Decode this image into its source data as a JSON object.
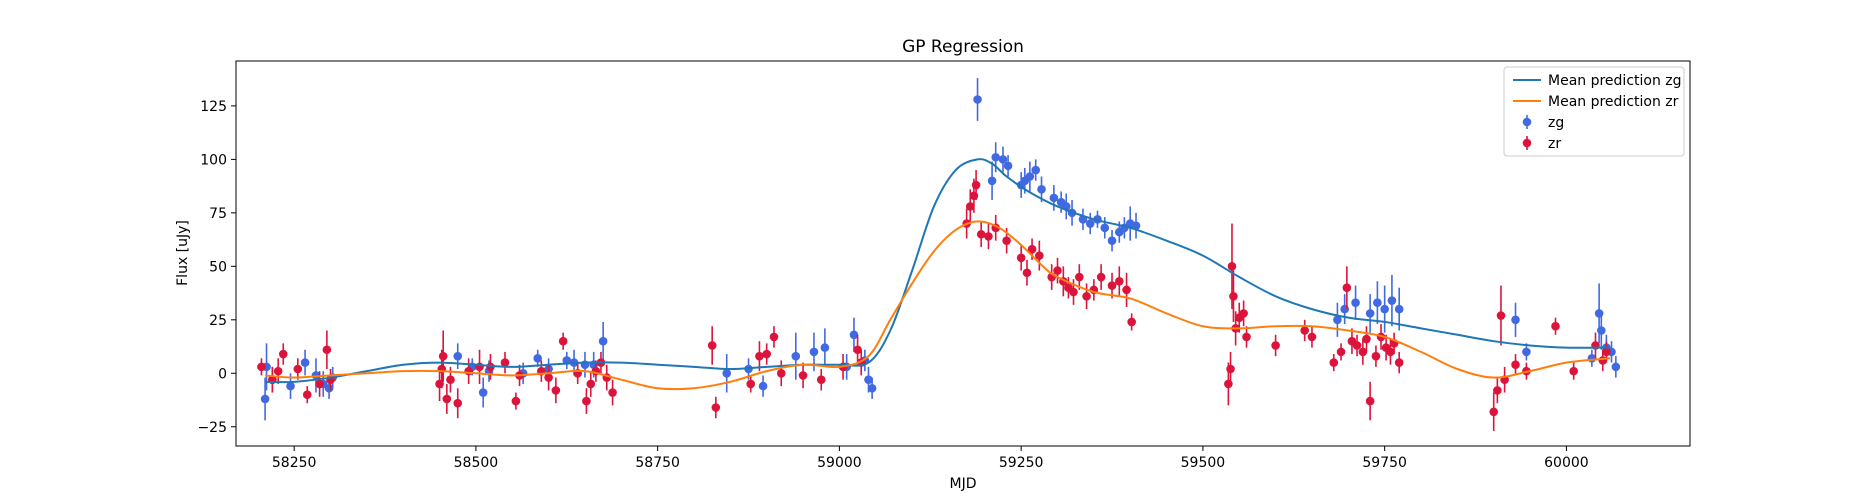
{
  "chart_data": {
    "type": "scatter",
    "title": "GP Regression",
    "xlabel": "MJD",
    "ylabel": "Flux [uJy]",
    "xlim": [
      58170,
      60170
    ],
    "ylim": [
      -34,
      146
    ],
    "xticks": [
      58250,
      58500,
      58750,
      59000,
      59250,
      59500,
      59750,
      60000
    ],
    "yticks": [
      -25,
      0,
      25,
      50,
      75,
      100,
      125
    ],
    "grid": false,
    "legend_position": "top-right",
    "legend": [
      {
        "label": "Mean prediction zg",
        "kind": "line",
        "color": "#1f77b4"
      },
      {
        "label": "Mean prediction zr",
        "kind": "line",
        "color": "#ff7f0e"
      },
      {
        "label": "zg",
        "kind": "errorbar",
        "color": "#4169e1"
      },
      {
        "label": "zr",
        "kind": "errorbar",
        "color": "#dc143c"
      }
    ],
    "lines": [
      {
        "name": "Mean prediction zg",
        "color": "#1f77b4",
        "x": [
          58210,
          58250,
          58300,
          58350,
          58400,
          58450,
          58500,
          58550,
          58600,
          58650,
          58700,
          58750,
          58800,
          58850,
          58900,
          58950,
          59000,
          59040,
          59070,
          59100,
          59130,
          59160,
          59190,
          59210,
          59230,
          59260,
          59300,
          59350,
          59400,
          59450,
          59500,
          59550,
          59600,
          59650,
          59700,
          59750,
          59800,
          59850,
          59900,
          59950,
          60000,
          60060
        ],
        "y": [
          -4,
          -4,
          -2,
          1,
          4,
          5,
          4,
          3,
          4,
          5,
          5,
          4,
          3,
          2,
          3,
          4,
          4,
          5,
          20,
          48,
          78,
          95,
          100,
          98,
          92,
          85,
          78,
          72,
          68,
          62,
          55,
          45,
          36,
          30,
          26,
          24,
          21,
          18,
          15,
          13,
          12,
          12
        ]
      },
      {
        "name": "Mean prediction zr",
        "color": "#ff7f0e",
        "x": [
          58210,
          58250,
          58300,
          58350,
          58400,
          58450,
          58500,
          58550,
          58600,
          58650,
          58700,
          58750,
          58800,
          58850,
          58900,
          58950,
          59000,
          59040,
          59070,
          59100,
          59130,
          59160,
          59190,
          59220,
          59250,
          59280,
          59300,
          59350,
          59400,
          59450,
          59500,
          59550,
          59600,
          59650,
          59700,
          59750,
          59800,
          59850,
          59900,
          59950,
          60000,
          60060
        ],
        "y": [
          -1,
          -2,
          -1,
          0,
          1,
          1,
          0,
          -1,
          0,
          1,
          -3,
          -7,
          -7,
          -4,
          1,
          4,
          3,
          8,
          25,
          42,
          57,
          67,
          71,
          68,
          60,
          50,
          45,
          38,
          35,
          28,
          22,
          21,
          22,
          22,
          20,
          17,
          10,
          2,
          -2,
          1,
          5,
          7
        ]
      }
    ],
    "series": [
      {
        "name": "zg",
        "color": "#4169e1",
        "points": [
          [
            58210,
            -12,
            10
          ],
          [
            58212,
            3,
            11
          ],
          [
            58220,
            -3,
            6
          ],
          [
            58245,
            -6,
            6
          ],
          [
            58265,
            5,
            6
          ],
          [
            58280,
            -1,
            8
          ],
          [
            58290,
            -5,
            6
          ],
          [
            58298,
            -7,
            5
          ],
          [
            58303,
            -2,
            5
          ],
          [
            58475,
            8,
            6
          ],
          [
            58495,
            3,
            4
          ],
          [
            58510,
            -9,
            7
          ],
          [
            58518,
            1,
            5
          ],
          [
            58565,
            0,
            5
          ],
          [
            58585,
            7,
            4
          ],
          [
            58600,
            2,
            5
          ],
          [
            58625,
            6,
            4
          ],
          [
            58635,
            5,
            6
          ],
          [
            58650,
            4,
            6
          ],
          [
            58662,
            4,
            6
          ],
          [
            58675,
            15,
            9
          ],
          [
            58845,
            0,
            9
          ],
          [
            58875,
            2,
            5
          ],
          [
            58895,
            -6,
            5
          ],
          [
            58940,
            8,
            11
          ],
          [
            58965,
            10,
            9
          ],
          [
            58980,
            12,
            9
          ],
          [
            59010,
            3,
            6
          ],
          [
            59020,
            18,
            8
          ],
          [
            59035,
            6,
            5
          ],
          [
            59040,
            -3,
            6
          ],
          [
            59045,
            -7,
            5
          ],
          [
            59190,
            128,
            10
          ],
          [
            59210,
            90,
            9
          ],
          [
            59215,
            101,
            7
          ],
          [
            59225,
            100,
            6
          ],
          [
            59232,
            97,
            5
          ],
          [
            59250,
            88,
            6
          ],
          [
            59255,
            90,
            6
          ],
          [
            59262,
            92,
            7
          ],
          [
            59270,
            95,
            5
          ],
          [
            59278,
            86,
            6
          ],
          [
            59295,
            82,
            6
          ],
          [
            59305,
            80,
            5
          ],
          [
            59312,
            78,
            6
          ],
          [
            59320,
            75,
            6
          ],
          [
            59335,
            72,
            5
          ],
          [
            59345,
            70,
            5
          ],
          [
            59355,
            72,
            4
          ],
          [
            59365,
            68,
            5
          ],
          [
            59375,
            62,
            5
          ],
          [
            59385,
            66,
            5
          ],
          [
            59392,
            68,
            5
          ],
          [
            59400,
            70,
            8
          ],
          [
            59408,
            69,
            6
          ],
          [
            59685,
            25,
            8
          ],
          [
            59695,
            30,
            7
          ],
          [
            59710,
            33,
            8
          ],
          [
            59730,
            28,
            9
          ],
          [
            59740,
            33,
            10
          ],
          [
            59750,
            30,
            11
          ],
          [
            59760,
            34,
            12
          ],
          [
            59770,
            30,
            10
          ],
          [
            59930,
            25,
            8
          ],
          [
            59945,
            10,
            4
          ],
          [
            60035,
            7,
            4
          ],
          [
            60045,
            28,
            14
          ],
          [
            60048,
            20,
            9
          ],
          [
            60055,
            12,
            6
          ],
          [
            60062,
            10,
            5
          ],
          [
            60068,
            3,
            5
          ]
        ]
      },
      {
        "name": "zr",
        "color": "#dc143c",
        "points": [
          [
            58205,
            3,
            4
          ],
          [
            58220,
            -3,
            6
          ],
          [
            58228,
            1,
            6
          ],
          [
            58235,
            9,
            5
          ],
          [
            58255,
            2,
            5
          ],
          [
            58268,
            -10,
            4
          ],
          [
            58285,
            -5,
            6
          ],
          [
            58295,
            11,
            9
          ],
          [
            58300,
            -3,
            5
          ],
          [
            58450,
            -5,
            8
          ],
          [
            58453,
            2,
            9
          ],
          [
            58455,
            8,
            12
          ],
          [
            58460,
            -12,
            7
          ],
          [
            58465,
            -3,
            6
          ],
          [
            58475,
            -14,
            7
          ],
          [
            58490,
            1,
            6
          ],
          [
            58505,
            3,
            8
          ],
          [
            58520,
            3,
            6
          ],
          [
            58540,
            5,
            5
          ],
          [
            58555,
            -13,
            4
          ],
          [
            58560,
            -1,
            5
          ],
          [
            58590,
            1,
            5
          ],
          [
            58600,
            -2,
            6
          ],
          [
            58610,
            -8,
            6
          ],
          [
            58620,
            15,
            4
          ],
          [
            58640,
            0,
            5
          ],
          [
            58652,
            -13,
            6
          ],
          [
            58658,
            -5,
            6
          ],
          [
            58665,
            1,
            5
          ],
          [
            58672,
            5,
            5
          ],
          [
            58680,
            -2,
            6
          ],
          [
            58688,
            -9,
            6
          ],
          [
            58825,
            13,
            9
          ],
          [
            58830,
            -16,
            5
          ],
          [
            58878,
            -5,
            4
          ],
          [
            58890,
            8,
            7
          ],
          [
            58900,
            9,
            5
          ],
          [
            58910,
            17,
            5
          ],
          [
            58920,
            0,
            6
          ],
          [
            58950,
            -1,
            6
          ],
          [
            58975,
            -3,
            5
          ],
          [
            59005,
            3,
            6
          ],
          [
            59025,
            11,
            7
          ],
          [
            59030,
            5,
            6
          ],
          [
            59175,
            70,
            7
          ],
          [
            59180,
            78,
            8
          ],
          [
            59185,
            83,
            8
          ],
          [
            59188,
            88,
            7
          ],
          [
            59195,
            65,
            6
          ],
          [
            59205,
            64,
            6
          ],
          [
            59215,
            68,
            6
          ],
          [
            59230,
            62,
            6
          ],
          [
            59250,
            54,
            6
          ],
          [
            59258,
            47,
            6
          ],
          [
            59265,
            58,
            5
          ],
          [
            59275,
            55,
            7
          ],
          [
            59292,
            45,
            6
          ],
          [
            59300,
            48,
            6
          ],
          [
            59308,
            43,
            7
          ],
          [
            59315,
            40,
            5
          ],
          [
            59322,
            38,
            6
          ],
          [
            59330,
            45,
            6
          ],
          [
            59340,
            36,
            6
          ],
          [
            59350,
            39,
            5
          ],
          [
            59360,
            45,
            6
          ],
          [
            59375,
            41,
            6
          ],
          [
            59385,
            43,
            7
          ],
          [
            59395,
            39,
            8
          ],
          [
            59402,
            24,
            4
          ],
          [
            59535,
            -5,
            10
          ],
          [
            59538,
            2,
            8
          ],
          [
            59540,
            50,
            20
          ],
          [
            59542,
            36,
            12
          ],
          [
            59545,
            21,
            8
          ],
          [
            59550,
            26,
            7
          ],
          [
            59556,
            28,
            6
          ],
          [
            59560,
            17,
            5
          ],
          [
            59600,
            13,
            5
          ],
          [
            59640,
            20,
            5
          ],
          [
            59650,
            17,
            5
          ],
          [
            59680,
            5,
            4
          ],
          [
            59690,
            10,
            4
          ],
          [
            59698,
            40,
            10
          ],
          [
            59705,
            15,
            6
          ],
          [
            59712,
            13,
            5
          ],
          [
            59720,
            10,
            6
          ],
          [
            59725,
            16,
            6
          ],
          [
            59730,
            -13,
            9
          ],
          [
            59738,
            8,
            5
          ],
          [
            59745,
            17,
            6
          ],
          [
            59752,
            12,
            6
          ],
          [
            59758,
            10,
            6
          ],
          [
            59763,
            14,
            5
          ],
          [
            59770,
            5,
            5
          ],
          [
            59900,
            -18,
            9
          ],
          [
            59905,
            -8,
            6
          ],
          [
            59910,
            27,
            14
          ],
          [
            59915,
            -3,
            6
          ],
          [
            59930,
            4,
            5
          ],
          [
            59945,
            1,
            4
          ],
          [
            59985,
            22,
            4
          ],
          [
            60010,
            1,
            4
          ],
          [
            60040,
            13,
            6
          ],
          [
            60050,
            6,
            5
          ],
          [
            60055,
            10,
            5
          ]
        ]
      }
    ]
  }
}
